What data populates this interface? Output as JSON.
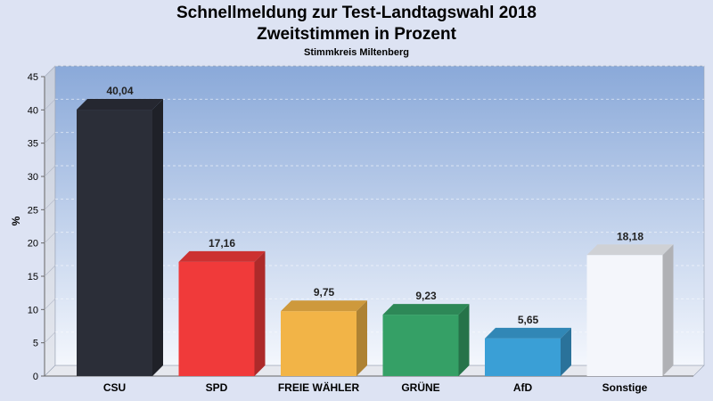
{
  "chart_data": {
    "type": "bar",
    "title": "Schnellmeldung zur Test-Landtagswahl 2018",
    "title_line2": "Zweitstimmen in Prozent",
    "subtitle": "Stimmkreis Miltenberg",
    "ylabel": "%",
    "ylim": [
      0,
      45
    ],
    "yticks": [
      0,
      5,
      10,
      15,
      20,
      25,
      30,
      35,
      40,
      45
    ],
    "grid": true,
    "categories": [
      "CSU",
      "SPD",
      "FREIE WÄHLER",
      "GRÜNE",
      "AfD",
      "Sonstige"
    ],
    "values": [
      40.04,
      17.16,
      9.75,
      9.23,
      5.65,
      18.18
    ],
    "value_labels": [
      "40,04",
      "17,16",
      "9,75",
      "9,23",
      "5,65",
      "18,18"
    ],
    "colors": [
      "#2b2e38",
      "#f03a3a",
      "#f2b447",
      "#35a066",
      "#3a9fd6",
      "#f4f6fb"
    ]
  }
}
